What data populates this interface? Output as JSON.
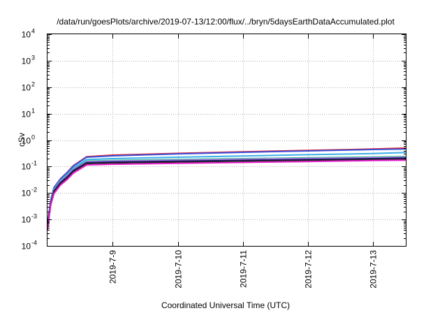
{
  "chart_data": {
    "type": "line",
    "title": "/data/run/goesPlots/archive/2019-07-13/12:00/flux/../bryn/5daysEarthDataAccumulated.plot",
    "xlabel": "Coordinated Universal Time (UTC)",
    "ylabel": "cSv",
    "yscale": "log",
    "xlim": [
      "2019-07-08",
      "2019-07-13 12:00"
    ],
    "ylim": [
      0.0001,
      10000
    ],
    "grid": true,
    "legend": "none",
    "x_ticks": [
      "2019-7-9",
      "2019-7-10",
      "2019-7-11",
      "2019-7-12",
      "2019-7-13"
    ],
    "y_ticks": [
      {
        "value": 0.0001,
        "base": "10",
        "exp": "-4"
      },
      {
        "value": 0.001,
        "base": "10",
        "exp": "-3"
      },
      {
        "value": 0.01,
        "base": "10",
        "exp": "-2"
      },
      {
        "value": 0.1,
        "base": "10",
        "exp": "-1"
      },
      {
        "value": 1,
        "base": "10",
        "exp": "0"
      },
      {
        "value": 10,
        "base": "10",
        "exp": "1"
      },
      {
        "value": 100,
        "base": "10",
        "exp": "2"
      },
      {
        "value": 1000,
        "base": "10",
        "exp": "3"
      },
      {
        "value": 10000,
        "base": "10",
        "exp": "4"
      }
    ],
    "x": [
      "2019-07-08 00:00",
      "2019-07-08 01:12",
      "2019-07-08 02:24",
      "2019-07-08 04:48",
      "2019-07-08 07:12",
      "2019-07-08 09:36",
      "2019-07-08 14:24",
      "2019-07-09 00:00",
      "2019-07-10 00:00",
      "2019-07-11 00:00",
      "2019-07-12 00:00",
      "2019-07-13 00:00",
      "2019-07-13 12:00"
    ],
    "series": [
      {
        "color": "#e8262a",
        "values": [
          0.0007,
          0.0055,
          0.016,
          0.035,
          0.06,
          0.11,
          0.235,
          0.27,
          0.315,
          0.36,
          0.41,
          0.46,
          0.5
        ]
      },
      {
        "color": "#3a4fd8",
        "values": [
          0.0007,
          0.0055,
          0.016,
          0.034,
          0.058,
          0.105,
          0.225,
          0.255,
          0.3,
          0.345,
          0.39,
          0.44,
          0.46
        ]
      },
      {
        "color": "#3aaee8",
        "values": [
          0.0007,
          0.005,
          0.014,
          0.03,
          0.05,
          0.09,
          0.185,
          0.2,
          0.225,
          0.25,
          0.28,
          0.31,
          0.34
        ]
      },
      {
        "color": "#2ec48a",
        "values": [
          0.0006,
          0.0045,
          0.013,
          0.028,
          0.045,
          0.08,
          0.16,
          0.17,
          0.185,
          0.2,
          0.215,
          0.23,
          0.24
        ]
      },
      {
        "color": "#b07fe0",
        "values": [
          0.0006,
          0.0044,
          0.0125,
          0.027,
          0.044,
          0.078,
          0.152,
          0.162,
          0.176,
          0.19,
          0.205,
          0.218,
          0.226
        ]
      },
      {
        "color": "#1a1a7a",
        "values": [
          0.0006,
          0.0042,
          0.012,
          0.025,
          0.04,
          0.072,
          0.14,
          0.148,
          0.16,
          0.172,
          0.185,
          0.2,
          0.21
        ]
      },
      {
        "color": "#222222",
        "values": [
          0.0005,
          0.004,
          0.011,
          0.023,
          0.037,
          0.066,
          0.13,
          0.137,
          0.148,
          0.16,
          0.172,
          0.185,
          0.19
        ]
      },
      {
        "color": "#e81fd0",
        "values": [
          0.0004,
          0.0035,
          0.0095,
          0.02,
          0.032,
          0.057,
          0.115,
          0.122,
          0.132,
          0.143,
          0.155,
          0.168,
          0.175
        ]
      }
    ]
  }
}
